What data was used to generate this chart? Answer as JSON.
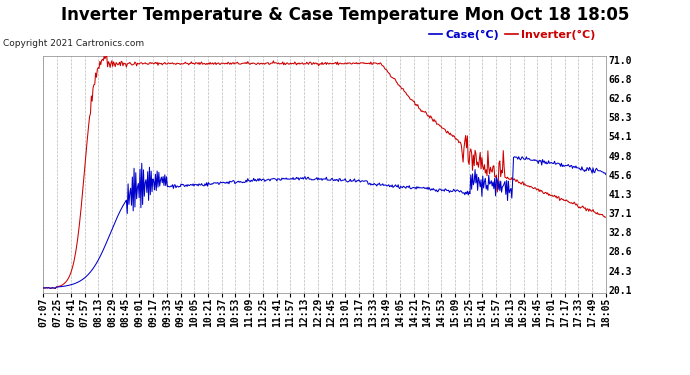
{
  "title": "Inverter Temperature & Case Temperature Mon Oct 18 18:05",
  "copyright": "Copyright 2021 Cartronics.com",
  "legend_case": "Case(°C)",
  "legend_inverter": "Inverter(°C)",
  "yticks": [
    20.1,
    24.3,
    28.6,
    32.8,
    37.1,
    41.3,
    45.6,
    49.8,
    54.1,
    58.3,
    62.6,
    66.8,
    71.0
  ],
  "ylim": [
    20.1,
    71.0
  ],
  "bg_color": "#ffffff",
  "plot_bg_color": "#ffffff",
  "grid_color": "#bbbbbb",
  "inverter_color": "#cc0000",
  "case_color": "#0000cc",
  "title_fontsize": 12,
  "tick_fontsize": 7,
  "xtick_labels": [
    "07:07",
    "07:25",
    "07:41",
    "07:57",
    "08:13",
    "08:29",
    "08:45",
    "09:01",
    "09:17",
    "09:33",
    "09:45",
    "10:05",
    "10:21",
    "10:37",
    "10:53",
    "11:09",
    "11:25",
    "11:41",
    "11:57",
    "12:13",
    "12:29",
    "12:45",
    "13:01",
    "13:17",
    "13:33",
    "13:49",
    "14:05",
    "14:21",
    "14:37",
    "14:53",
    "15:09",
    "15:25",
    "15:41",
    "15:57",
    "16:13",
    "16:29",
    "16:45",
    "17:01",
    "17:17",
    "17:33",
    "17:49",
    "18:05"
  ]
}
